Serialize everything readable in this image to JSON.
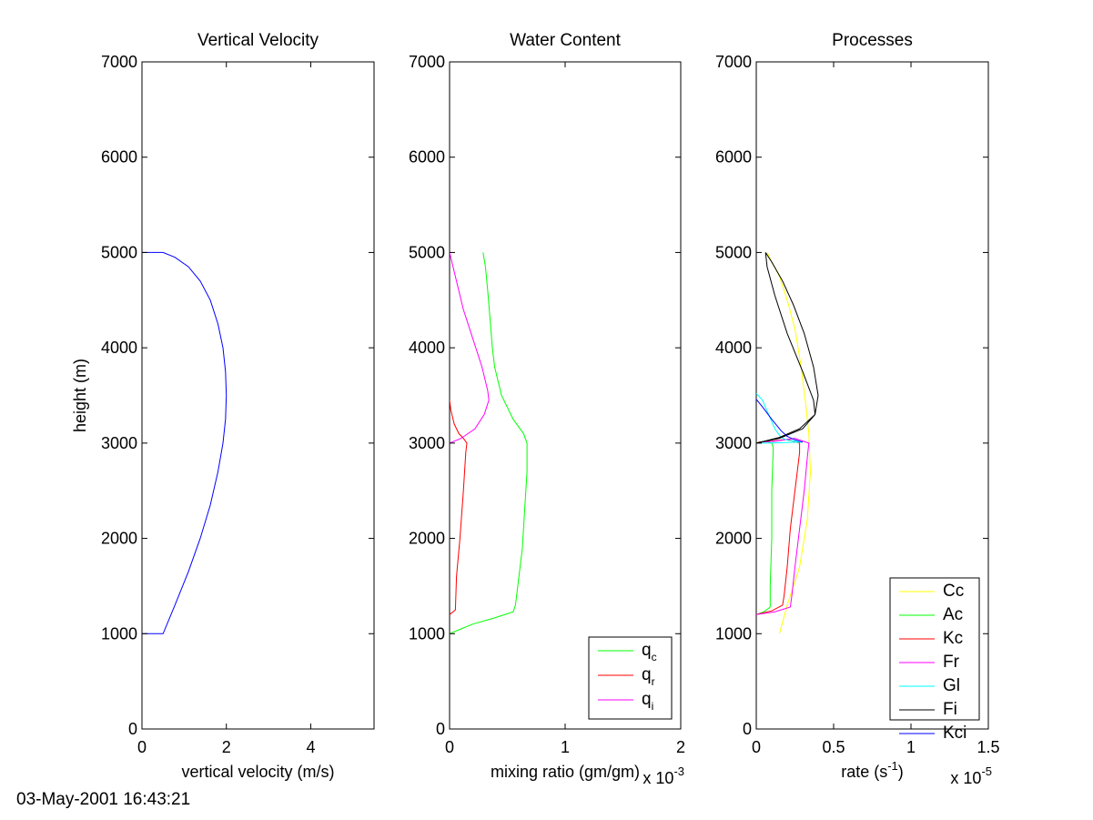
{
  "timestamp": "03-May-2001 16:43:21",
  "chart_data": [
    {
      "type": "line",
      "title": "Vertical Velocity",
      "xlabel": "vertical velocity (m/s)",
      "ylabel": "height (m)",
      "xlim": [
        0,
        5.5
      ],
      "ylim": [
        0,
        7000
      ],
      "xticks": [
        0,
        2,
        4
      ],
      "xtick_labels": [
        "0",
        "2",
        "4"
      ],
      "yticks": [
        0,
        1000,
        2000,
        3000,
        4000,
        5000,
        6000,
        7000
      ],
      "ytick_labels": [
        "0",
        "1000",
        "2000",
        "3000",
        "4000",
        "5000",
        "6000",
        "7000"
      ],
      "series": [
        {
          "color": "#0000ff",
          "x": [
            0,
            0.5,
            0.78,
            1.1,
            1.38,
            1.62,
            1.8,
            1.92,
            1.98,
            2.0,
            1.98,
            1.92,
            1.8,
            1.62,
            1.38,
            1.1,
            0.78,
            0.5,
            0
          ],
          "y": [
            1000,
            1000,
            1300,
            1650,
            2000,
            2350,
            2700,
            3000,
            3250,
            3500,
            3750,
            4000,
            4250,
            4500,
            4700,
            4850,
            4950,
            5000,
            5000
          ]
        }
      ]
    },
    {
      "type": "line",
      "title": "Water Content",
      "xlabel": "mixing ratio (gm/gm)",
      "axis_multiplier": "x 10^-3",
      "xlim": [
        0,
        2
      ],
      "ylim": [
        0,
        7000
      ],
      "xticks": [
        0,
        1,
        2
      ],
      "xtick_labels": [
        "0",
        "1",
        "2"
      ],
      "yticks": [
        0,
        1000,
        2000,
        3000,
        4000,
        5000,
        6000,
        7000
      ],
      "ytick_labels": [
        "0",
        "1000",
        "2000",
        "3000",
        "4000",
        "5000",
        "6000",
        "7000"
      ],
      "legend": {
        "position": "bottom-right",
        "entries": [
          {
            "base": "q",
            "sub": "c",
            "color": "#00ff00"
          },
          {
            "base": "q",
            "sub": "r",
            "color": "#ff0000"
          },
          {
            "base": "q",
            "sub": "i",
            "color": "#ff00ff"
          }
        ]
      },
      "series": [
        {
          "color": "#00ff00",
          "x": [
            0.0,
            0.1,
            0.2,
            0.4,
            0.55,
            0.57,
            0.6,
            0.63,
            0.65,
            0.67,
            0.67,
            0.64,
            0.55,
            0.45,
            0.39,
            0.37,
            0.35,
            0.33,
            0.31,
            0.29
          ],
          "y": [
            1000,
            1050,
            1100,
            1170,
            1230,
            1300,
            1600,
            1900,
            2300,
            2700,
            3000,
            3100,
            3250,
            3500,
            3800,
            4000,
            4300,
            4600,
            4850,
            5000
          ]
        },
        {
          "color": "#ff0000",
          "x": [
            0.0,
            0.05,
            0.06,
            0.09,
            0.12,
            0.14,
            0.15,
            0.12,
            0.08,
            0.04,
            0.01,
            0.0
          ],
          "y": [
            1200,
            1250,
            1600,
            2000,
            2500,
            2900,
            3000,
            3050,
            3100,
            3200,
            3350,
            3450
          ]
        },
        {
          "color": "#ff00ff",
          "x": [
            0.0,
            0.1,
            0.22,
            0.3,
            0.34,
            0.33,
            0.28,
            0.2,
            0.12,
            0.07,
            0.03,
            0.0
          ],
          "y": [
            3000,
            3050,
            3150,
            3300,
            3450,
            3550,
            3800,
            4100,
            4400,
            4650,
            4850,
            5000
          ]
        }
      ]
    },
    {
      "type": "line",
      "title": "Processes",
      "xlabel": "rate (s^-1)",
      "axis_multiplier": "x 10^-5",
      "xlim": [
        0,
        1.5
      ],
      "ylim": [
        0,
        7000
      ],
      "xticks": [
        0,
        0.5,
        1,
        1.5
      ],
      "xtick_labels": [
        "0",
        "0.5",
        "1",
        "1.5"
      ],
      "yticks": [
        0,
        1000,
        2000,
        3000,
        4000,
        5000,
        6000,
        7000
      ],
      "ytick_labels": [
        "0",
        "1000",
        "2000",
        "3000",
        "4000",
        "5000",
        "6000",
        "7000"
      ],
      "legend": {
        "position": "bottom-right",
        "entries": [
          {
            "base": "Cc",
            "color": "#ffff00"
          },
          {
            "base": "Ac",
            "color": "#00ff00"
          },
          {
            "base": "Kc",
            "color": "#ff0000"
          },
          {
            "base": "Fr",
            "color": "#ff00ff"
          },
          {
            "base": "Gl",
            "color": "#00ffff"
          },
          {
            "base": "Fi",
            "color": "#000000"
          },
          {
            "base": "Kci",
            "color": "#0000ff"
          }
        ]
      },
      "series": [
        {
          "color": "#ffff00",
          "x": [
            0.15,
            0.2,
            0.28,
            0.33,
            0.35,
            0.34,
            0.32,
            0.29,
            0.25,
            0.2,
            0.15,
            0.1,
            0.07
          ],
          "y": [
            1000,
            1300,
            1700,
            2200,
            2700,
            3100,
            3400,
            3800,
            4200,
            4500,
            4750,
            4900,
            5000
          ]
        },
        {
          "color": "#00ff00",
          "x": [
            0.0,
            0.05,
            0.09,
            0.09,
            0.1,
            0.1,
            0.11,
            0.1,
            0.06,
            0.02,
            0.0
          ],
          "y": [
            1200,
            1230,
            1280,
            1500,
            2000,
            2500,
            2950,
            3000,
            3020,
            3010,
            3000
          ]
        },
        {
          "color": "#ff0000",
          "x": [
            0.0,
            0.1,
            0.17,
            0.18,
            0.2,
            0.22,
            0.25,
            0.28,
            0.28,
            0.2,
            0.1,
            0.02,
            0.0
          ],
          "y": [
            1200,
            1240,
            1300,
            1400,
            1700,
            2100,
            2500,
            2900,
            3000,
            3040,
            3020,
            3010,
            3000
          ]
        },
        {
          "color": "#ff00ff",
          "x": [
            0.0,
            0.12,
            0.22,
            0.23,
            0.25,
            0.28,
            0.31,
            0.33,
            0.34,
            0.25,
            0.12,
            0.03,
            0.0
          ],
          "y": [
            1200,
            1230,
            1280,
            1400,
            1700,
            2100,
            2500,
            2850,
            3000,
            3050,
            3020,
            3010,
            3000
          ]
        },
        {
          "color": "#00ffff",
          "x": [
            0.0,
            0.04,
            0.08,
            0.12,
            0.16,
            0.2,
            0.25,
            0.3,
            0.2,
            0.1,
            0.02,
            0.0
          ],
          "y": [
            3520,
            3450,
            3300,
            3150,
            3060,
            3030,
            3020,
            3010,
            3005,
            3002,
            3000,
            3000
          ]
        },
        {
          "color": "#000000",
          "x": [
            0.0,
            0.15,
            0.3,
            0.38,
            0.37,
            0.3,
            0.2,
            0.12,
            0.07,
            0.06,
            0.1,
            0.17,
            0.24,
            0.31,
            0.37,
            0.4,
            0.38,
            0.28,
            0.15,
            0.05,
            0.0
          ],
          "y": [
            3000,
            3050,
            3150,
            3300,
            3450,
            3750,
            4150,
            4550,
            4850,
            5000,
            4900,
            4700,
            4450,
            4150,
            3800,
            3500,
            3300,
            3150,
            3060,
            3020,
            3000
          ]
        },
        {
          "color": "#0000ff",
          "x": [
            0.0,
            0.04,
            0.1,
            0.16,
            0.2,
            0.24,
            0.28,
            0.3
          ],
          "y": [
            3460,
            3380,
            3250,
            3130,
            3070,
            3040,
            3020,
            3010
          ]
        }
      ]
    }
  ]
}
